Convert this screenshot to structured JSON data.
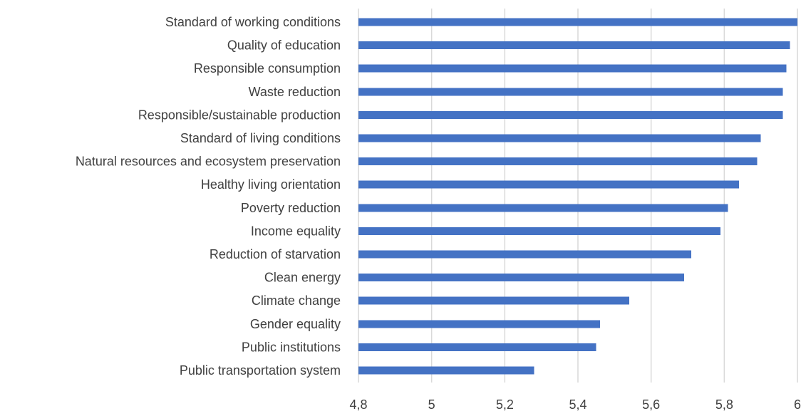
{
  "chart_data": {
    "type": "bar",
    "orientation": "horizontal",
    "title": "",
    "xlabel": "",
    "ylabel": "",
    "xlim": [
      4.8,
      6.0
    ],
    "xticks": [
      "4,8",
      "5",
      "5,2",
      "5,4",
      "5,6",
      "5,8",
      "6"
    ],
    "grid": true,
    "legend": "none",
    "bar_color": "#4472c4",
    "categories": [
      "Standard of working conditions",
      "Quality of education",
      "Responsible consumption",
      "Waste reduction",
      "Responsible/sustainable production",
      "Standard of living conditions",
      "Natural resources and ecosystem preservation",
      "Healthy living orientation",
      "Poverty reduction",
      "Income equality",
      "Reduction of starvation",
      "Clean energy",
      "Climate change",
      "Gender equality",
      "Public institutions",
      "Public transportation system"
    ],
    "values": [
      6.01,
      5.98,
      5.97,
      5.96,
      5.96,
      5.9,
      5.89,
      5.84,
      5.81,
      5.79,
      5.71,
      5.69,
      5.54,
      5.46,
      5.45,
      5.28
    ]
  }
}
